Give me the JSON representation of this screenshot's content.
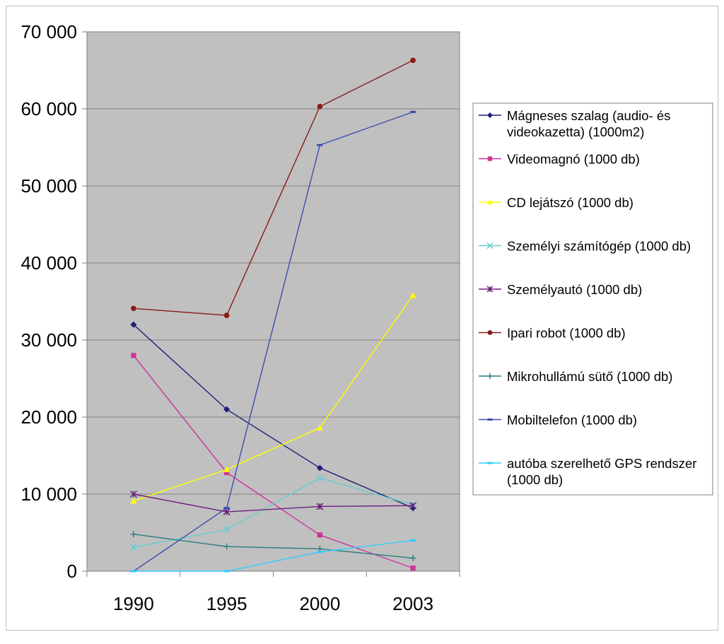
{
  "chart_data": {
    "type": "line",
    "title": "",
    "xlabel": "",
    "ylabel": "",
    "categories": [
      "1990",
      "1995",
      "2000",
      "2003"
    ],
    "ylim": [
      0,
      70000
    ],
    "yticks": [
      0,
      10000,
      20000,
      30000,
      40000,
      50000,
      60000,
      70000
    ],
    "ytick_labels": [
      "0",
      "10 000",
      "20 000",
      "30 000",
      "40 000",
      "50 000",
      "60 000",
      "70 000"
    ],
    "grid": true,
    "plot_background": "#c0c0c0",
    "legend_position": "right",
    "series": [
      {
        "name": "Mágneses szalag (audio- és videokazetta) (1000m2)",
        "legend_lines": [
          "Mágneses szalag (audio- és",
          "videokazetta) (1000m2)"
        ],
        "color": "#1f1f7a",
        "marker": "diamond",
        "values": [
          32000,
          21000,
          13400,
          8200
        ]
      },
      {
        "name": "Videomagnó (1000 db)",
        "legend_lines": [
          "Videomagnó (1000 db)"
        ],
        "color": "#cc3399",
        "marker": "square",
        "values": [
          28000,
          12800,
          4700,
          400
        ]
      },
      {
        "name": "CD lejátszó (1000 db)",
        "legend_lines": [
          "CD lejátszó (1000 db)"
        ],
        "color": "#ffff00",
        "marker": "triangle",
        "values": [
          9100,
          13200,
          18600,
          35800
        ]
      },
      {
        "name": "Személyi számítógép (1000 db)",
        "legend_lines": [
          "Személyi számítógép (1000 db)"
        ],
        "color": "#66cccc",
        "marker": "x",
        "values": [
          3100,
          5400,
          12100,
          8600
        ]
      },
      {
        "name": "Személyautó (1000 db)",
        "legend_lines": [
          "Személyautó (1000 db)"
        ],
        "color": "#6b1f7a",
        "marker": "star",
        "values": [
          10000,
          7700,
          8400,
          8500
        ]
      },
      {
        "name": "Ipari robot (1000 db)",
        "legend_lines": [
          "Ipari robot (1000 db)"
        ],
        "color": "#8b1a1a",
        "marker": "circle",
        "values": [
          34100,
          33200,
          60300,
          66300
        ]
      },
      {
        "name": "Mikrohullámú sütő (1000 db)",
        "legend_lines": [
          "Mikrohullámú sütő (1000 db)"
        ],
        "color": "#2e7f7f",
        "marker": "plus",
        "values": [
          4800,
          3200,
          2900,
          1700
        ]
      },
      {
        "name": "Mobiltelefon (1000 db)",
        "legend_lines": [
          "Mobiltelefon (1000 db)"
        ],
        "color": "#3d4db3",
        "marker": "dash",
        "values": [
          0,
          8200,
          55300,
          59600
        ]
      },
      {
        "name": "autóba szerelhető GPS rendszer (1000 db)",
        "legend_lines": [
          "autóba szerelhető GPS rendszer",
          "(1000 db)"
        ],
        "color": "#33ccff",
        "marker": "dash",
        "values": [
          0,
          0,
          2500,
          4000
        ]
      }
    ]
  }
}
